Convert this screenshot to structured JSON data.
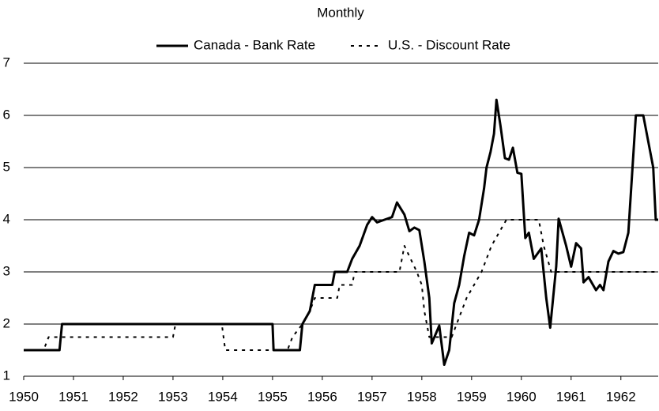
{
  "chart_data": {
    "type": "line",
    "title": "Monthly",
    "xlim": [
      1950,
      1962.75
    ],
    "xticks": [
      1950,
      1951,
      1952,
      1953,
      1954,
      1955,
      1956,
      1957,
      1958,
      1959,
      1960,
      1961,
      1962
    ],
    "ylim": [
      1,
      7
    ],
    "yticks": [
      1,
      2,
      3,
      4,
      5,
      6,
      7
    ],
    "grid": true,
    "legend": "top",
    "series": [
      {
        "name": "Canada - Bank Rate",
        "color": "#000000",
        "dash": false,
        "x": [
          1950,
          1950.72,
          1950.77,
          1955.0,
          1955.02,
          1955.55,
          1955.6,
          1955.75,
          1955.85,
          1956.2,
          1956.25,
          1956.5,
          1956.6,
          1956.75,
          1956.9,
          1957.0,
          1957.1,
          1957.25,
          1957.4,
          1957.5,
          1957.65,
          1957.75,
          1957.85,
          1957.95,
          1958.05,
          1958.15,
          1958.2,
          1958.35,
          1958.45,
          1958.55,
          1958.65,
          1958.75,
          1958.85,
          1958.95,
          1959.05,
          1959.15,
          1959.25,
          1959.3,
          1959.38,
          1959.45,
          1959.5,
          1959.58,
          1959.67,
          1959.75,
          1959.83,
          1959.92,
          1960.0,
          1960.08,
          1960.15,
          1960.25,
          1960.4,
          1960.5,
          1960.58,
          1960.7,
          1960.75,
          1960.9,
          1961.0,
          1961.1,
          1961.2,
          1961.25,
          1961.35,
          1961.5,
          1961.58,
          1961.65,
          1961.75,
          1961.85,
          1961.95,
          1962.05,
          1962.15,
          1962.3,
          1962.45,
          1962.55,
          1962.65,
          1962.7,
          1962.75
        ],
        "values": [
          1.5,
          1.5,
          2.0,
          2.0,
          1.5,
          1.5,
          2.0,
          2.25,
          2.75,
          2.75,
          3.0,
          3.0,
          3.25,
          3.5,
          3.9,
          4.05,
          3.95,
          4.0,
          4.05,
          4.33,
          4.1,
          3.78,
          3.85,
          3.8,
          3.2,
          2.5,
          1.63,
          1.97,
          1.22,
          1.5,
          2.4,
          2.75,
          3.3,
          3.75,
          3.7,
          4.0,
          4.6,
          5.0,
          5.3,
          5.65,
          6.3,
          5.8,
          5.18,
          5.15,
          5.38,
          4.9,
          4.88,
          3.65,
          3.75,
          3.25,
          3.45,
          2.5,
          1.93,
          3.1,
          4.02,
          3.5,
          3.1,
          3.55,
          3.45,
          2.8,
          2.9,
          2.65,
          2.75,
          2.65,
          3.2,
          3.4,
          3.35,
          3.38,
          3.75,
          6.0,
          6.0,
          5.5,
          5.0,
          4.0,
          4.0
        ]
      },
      {
        "name": "U.S. - Discount Rate",
        "color": "#000000",
        "dash": true,
        "x": [
          1950,
          1950.4,
          1950.5,
          1953.0,
          1953.05,
          1953.98,
          1954.05,
          1955.3,
          1955.4,
          1955.6,
          1955.75,
          1955.85,
          1956.3,
          1956.35,
          1956.6,
          1956.65,
          1957.55,
          1957.65,
          1957.9,
          1958.0,
          1958.05,
          1958.15,
          1958.6,
          1958.7,
          1958.9,
          1959.2,
          1959.4,
          1959.7,
          1960.35,
          1960.45,
          1960.6,
          1962.75
        ],
        "values": [
          1.5,
          1.5,
          1.75,
          1.75,
          2.0,
          2.0,
          1.5,
          1.5,
          1.75,
          2.0,
          2.25,
          2.5,
          2.5,
          2.75,
          2.75,
          3.0,
          3.0,
          3.5,
          3.0,
          2.75,
          2.25,
          1.75,
          1.75,
          2.0,
          2.5,
          3.0,
          3.5,
          4.0,
          4.0,
          3.5,
          3.0,
          3.0
        ]
      }
    ]
  }
}
